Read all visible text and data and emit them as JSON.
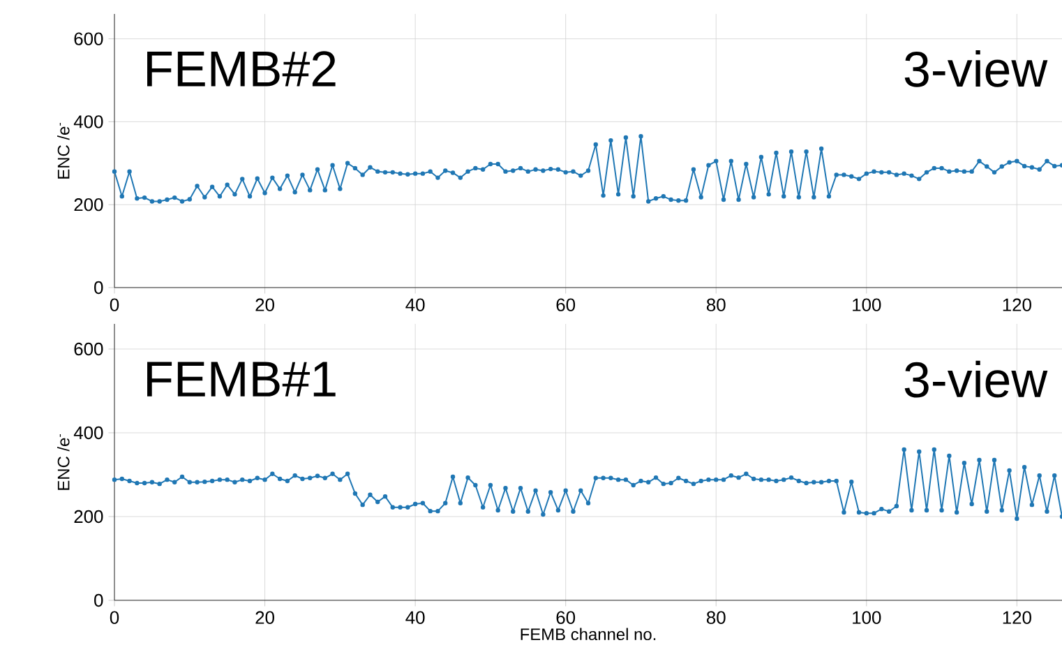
{
  "chart_data": [
    {
      "type": "line",
      "annotations": [
        "FEMB#2",
        "3-view"
      ],
      "ylabel": "ENC /e$^{-}$",
      "x": [
        0,
        1,
        2,
        3,
        4,
        5,
        6,
        7,
        8,
        9,
        10,
        11,
        12,
        13,
        14,
        15,
        16,
        17,
        18,
        19,
        20,
        21,
        22,
        23,
        24,
        25,
        26,
        27,
        28,
        29,
        30,
        31,
        32,
        33,
        34,
        35,
        36,
        37,
        38,
        39,
        40,
        41,
        42,
        43,
        44,
        45,
        46,
        47,
        48,
        49,
        50,
        51,
        52,
        53,
        54,
        55,
        56,
        57,
        58,
        59,
        60,
        61,
        62,
        63,
        64,
        65,
        66,
        67,
        68,
        69,
        70,
        71,
        72,
        73,
        74,
        75,
        76,
        77,
        78,
        79,
        80,
        81,
        82,
        83,
        84,
        85,
        86,
        87,
        88,
        89,
        90,
        91,
        92,
        93,
        94,
        95,
        96,
        97,
        98,
        99,
        100,
        101,
        102,
        103,
        104,
        105,
        106,
        107,
        108,
        109,
        110,
        111,
        112,
        113,
        114,
        115,
        116,
        117,
        118,
        119,
        120,
        121,
        122,
        123,
        124,
        125,
        126
      ],
      "series": [
        {
          "color": "#1f77b4",
          "values": [
            280,
            220,
            280,
            215,
            217,
            208,
            208,
            212,
            217,
            208,
            213,
            245,
            218,
            243,
            220,
            248,
            225,
            262,
            220,
            263,
            228,
            265,
            238,
            270,
            230,
            272,
            235,
            285,
            235,
            295,
            238,
            300,
            288,
            272,
            290,
            280,
            278,
            278,
            275,
            273,
            275,
            275,
            280,
            265,
            282,
            277,
            265,
            280,
            288,
            285,
            298,
            298,
            280,
            282,
            288,
            280,
            285,
            282,
            286,
            285,
            278,
            280,
            270,
            282,
            345,
            222,
            355,
            225,
            362,
            220,
            365,
            208,
            215,
            220,
            212,
            210,
            210,
            285,
            218,
            295,
            305,
            212,
            305,
            212,
            298,
            218,
            315,
            225,
            325,
            220,
            328,
            218,
            328,
            218,
            335,
            220,
            272,
            272,
            268,
            262,
            275,
            280,
            278,
            278,
            272,
            275,
            270,
            262,
            278,
            288,
            288,
            280,
            282,
            280,
            280,
            305,
            292,
            278,
            292,
            302,
            305,
            293,
            290,
            285,
            305,
            293,
            295
          ]
        }
      ],
      "xlim": [
        0,
        126
      ],
      "ylim": [
        0,
        660
      ],
      "xticks": [
        0,
        20,
        40,
        60,
        80,
        100,
        120
      ],
      "yticks": [
        0,
        200,
        400,
        600
      ],
      "grid": true,
      "marker": "circle"
    },
    {
      "type": "line",
      "annotations": [
        "FEMB#1",
        "3-view"
      ],
      "xlabel": "FEMB channel no.",
      "ylabel": "ENC /e$^{-}$",
      "x": [
        0,
        1,
        2,
        3,
        4,
        5,
        6,
        7,
        8,
        9,
        10,
        11,
        12,
        13,
        14,
        15,
        16,
        17,
        18,
        19,
        20,
        21,
        22,
        23,
        24,
        25,
        26,
        27,
        28,
        29,
        30,
        31,
        32,
        33,
        34,
        35,
        36,
        37,
        38,
        39,
        40,
        41,
        42,
        43,
        44,
        45,
        46,
        47,
        48,
        49,
        50,
        51,
        52,
        53,
        54,
        55,
        56,
        57,
        58,
        59,
        60,
        61,
        62,
        63,
        64,
        65,
        66,
        67,
        68,
        69,
        70,
        71,
        72,
        73,
        74,
        75,
        76,
        77,
        78,
        79,
        80,
        81,
        82,
        83,
        84,
        85,
        86,
        87,
        88,
        89,
        90,
        91,
        92,
        93,
        94,
        95,
        96,
        97,
        98,
        99,
        100,
        101,
        102,
        103,
        104,
        105,
        106,
        107,
        108,
        109,
        110,
        111,
        112,
        113,
        114,
        115,
        116,
        117,
        118,
        119,
        120,
        121,
        122,
        123,
        124,
        125,
        126
      ],
      "series": [
        {
          "color": "#1f77b4",
          "values": [
            288,
            290,
            285,
            280,
            280,
            282,
            278,
            288,
            282,
            295,
            282,
            282,
            283,
            285,
            288,
            288,
            282,
            288,
            285,
            292,
            288,
            302,
            290,
            285,
            298,
            290,
            292,
            297,
            292,
            302,
            288,
            302,
            255,
            228,
            252,
            235,
            248,
            222,
            222,
            222,
            230,
            232,
            213,
            213,
            232,
            295,
            232,
            293,
            275,
            222,
            275,
            215,
            268,
            212,
            268,
            212,
            262,
            205,
            258,
            215,
            262,
            212,
            262,
            232,
            292,
            292,
            292,
            288,
            288,
            275,
            285,
            282,
            293,
            278,
            280,
            292,
            285,
            278,
            285,
            288,
            288,
            288,
            298,
            293,
            302,
            290,
            288,
            288,
            285,
            288,
            293,
            285,
            280,
            282,
            282,
            285,
            285,
            210,
            283,
            210,
            208,
            208,
            218,
            212,
            225,
            360,
            215,
            355,
            215,
            360,
            215,
            345,
            210,
            328,
            230,
            335,
            212,
            335,
            215,
            310,
            195,
            318,
            228,
            298,
            212,
            298,
            200
          ]
        }
      ],
      "xlim": [
        0,
        126
      ],
      "ylim": [
        0,
        660
      ],
      "xticks": [
        0,
        20,
        40,
        60,
        80,
        100,
        120
      ],
      "yticks": [
        0,
        200,
        400,
        600
      ],
      "grid": true,
      "marker": "circle"
    }
  ]
}
